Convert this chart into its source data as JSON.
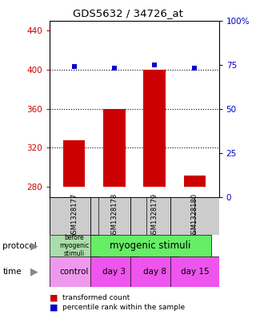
{
  "title": "GDS5632 / 34726_at",
  "samples": [
    "GSM1328177",
    "GSM1328178",
    "GSM1328179",
    "GSM1328180"
  ],
  "bar_values": [
    328,
    360,
    400,
    292
  ],
  "bar_base": 280,
  "bar_color": "#cc0000",
  "dot_values": [
    74,
    73,
    75,
    73
  ],
  "dot_color": "#0000cc",
  "ylim_left": [
    270,
    450
  ],
  "ylim_right": [
    0,
    100
  ],
  "yticks_left": [
    280,
    320,
    360,
    400,
    440
  ],
  "ytick_labels_right": [
    "0",
    "25",
    "50",
    "75",
    "100%"
  ],
  "hlines": [
    320,
    360,
    400
  ],
  "protocol_color_before": "#aaddaa",
  "protocol_color_after": "#66ee66",
  "time_color_control": "#ee99ee",
  "time_color_days": "#ee55ee",
  "time_labels": [
    "control",
    "day 3",
    "day 8",
    "day 15"
  ],
  "legend_red": "transformed count",
  "legend_blue": "percentile rank within the sample",
  "left_label_color": "#cc0000",
  "right_label_color": "#0000cc",
  "bg_color": "#ffffff",
  "bar_width": 0.55
}
